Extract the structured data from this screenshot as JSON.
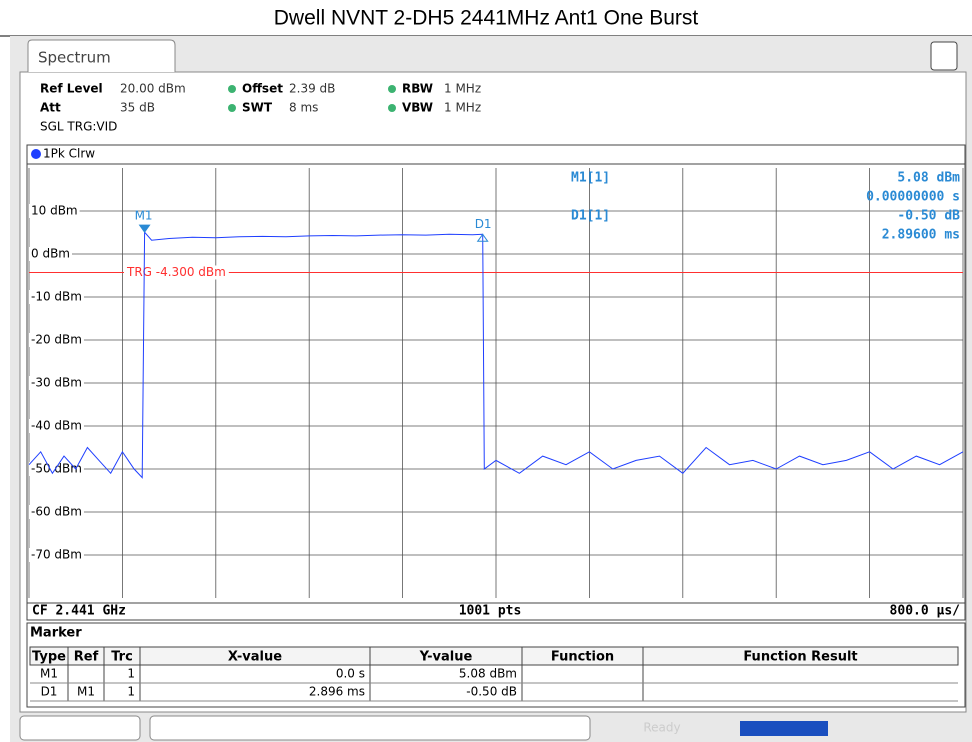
{
  "title": "Dwell NVNT 2-DH5 2441MHz Ant1 One Burst",
  "tab": "Spectrum",
  "settings": [
    {
      "label": "Ref Level",
      "value": "20.00 dBm"
    },
    {
      "label": "Offset",
      "value": "2.39 dB"
    },
    {
      "label": "RBW",
      "value": "1 MHz"
    },
    {
      "label": "Att",
      "value": "35 dB"
    },
    {
      "label": "SWT",
      "value": "8 ms"
    },
    {
      "label": "VBW",
      "value": "1 MHz"
    }
  ],
  "mode": "SGL TRG:VID",
  "trace_label": "1Pk Clrw",
  "chart_data": {
    "type": "line",
    "x": [
      0,
      0.1,
      0.2,
      0.3,
      0.4,
      0.5,
      0.6,
      0.7,
      0.8,
      0.9,
      0.97,
      0.99,
      1.05,
      1.2,
      1.4,
      1.6,
      1.8,
      2.0,
      2.2,
      2.4,
      2.6,
      2.8,
      3.0,
      3.2,
      3.4,
      3.6,
      3.8,
      3.886,
      3.9,
      4.0,
      4.2,
      4.4,
      4.6,
      4.8,
      5.0,
      5.2,
      5.4,
      5.6,
      5.8,
      6.0,
      6.2,
      6.4,
      6.6,
      6.8,
      7.0,
      7.2,
      7.4,
      7.6,
      7.8,
      8.0
    ],
    "series": [
      {
        "color": "#1f3fff",
        "values": [
          -49,
          -46,
          -51,
          -47,
          -50,
          -45,
          -48,
          -51,
          -46,
          -50,
          -52,
          5.08,
          3.2,
          3.6,
          3.9,
          3.8,
          4.0,
          4.1,
          4.0,
          4.2,
          4.3,
          4.2,
          4.4,
          4.5,
          4.4,
          4.6,
          4.5,
          4.58,
          -50,
          -48,
          -51,
          -47,
          -49,
          -46,
          -50,
          -48,
          -47,
          -51,
          -45,
          -49,
          -48,
          -50,
          -47,
          -49,
          -48,
          -46,
          -50,
          -47,
          -49,
          -46
        ]
      }
    ],
    "xlim": [
      0,
      8
    ],
    "ylim": [
      -80,
      20
    ],
    "xticks": [
      0,
      0.8,
      1.6,
      2.4,
      3.2,
      4.0,
      4.8,
      5.6,
      6.4,
      7.2,
      8.0
    ],
    "yticks": [
      {
        "value": -70,
        "label": "-70 dBm"
      },
      {
        "value": -60,
        "label": "-60 dBm"
      },
      {
        "value": -50,
        "label": "-50 dBm"
      },
      {
        "value": -40,
        "label": "-40 dBm"
      },
      {
        "value": -30,
        "label": "-30 dBm"
      },
      {
        "value": -20,
        "label": "-20 dBm"
      },
      {
        "value": -10,
        "label": "-10 dBm"
      },
      {
        "value": 0,
        "label": "0 dBm"
      },
      {
        "value": 10,
        "label": "10 dBm"
      }
    ],
    "grid": true,
    "trigger": {
      "value": -4.3,
      "label": "TRG -4.300 dBm",
      "color": "#ff3030"
    },
    "markers": [
      {
        "label": "M1",
        "x": 0.99,
        "y": 5.08,
        "dir": "down"
      },
      {
        "label": "D1",
        "x": 3.886,
        "y": 4.58,
        "dir": "up"
      }
    ]
  },
  "marker_readout": [
    {
      "name": "M1[1]",
      "lines": [
        "5.08 dBm",
        "0.00000000 s"
      ]
    },
    {
      "name": "D1[1]",
      "lines": [
        "-0.50 dB",
        "2.89600 ms"
      ]
    }
  ],
  "footer": {
    "left": "CF 2.441 GHz",
    "center": "1001 pts",
    "right": "800.0 µs/"
  },
  "marker_table": {
    "title": "Marker",
    "headers": [
      "Type",
      "Ref",
      "Trc",
      "X-value",
      "Y-value",
      "Function",
      "Function Result"
    ],
    "rows": [
      {
        "type": "M1",
        "trc": "1",
        "x": "0.0 s",
        "y": "5.08 dBm"
      },
      {
        "type": "D1",
        "ref": "M1",
        "trc": "1",
        "x": "2.896 ms",
        "y": "-0.50 dB"
      }
    ]
  },
  "status": "Ready"
}
